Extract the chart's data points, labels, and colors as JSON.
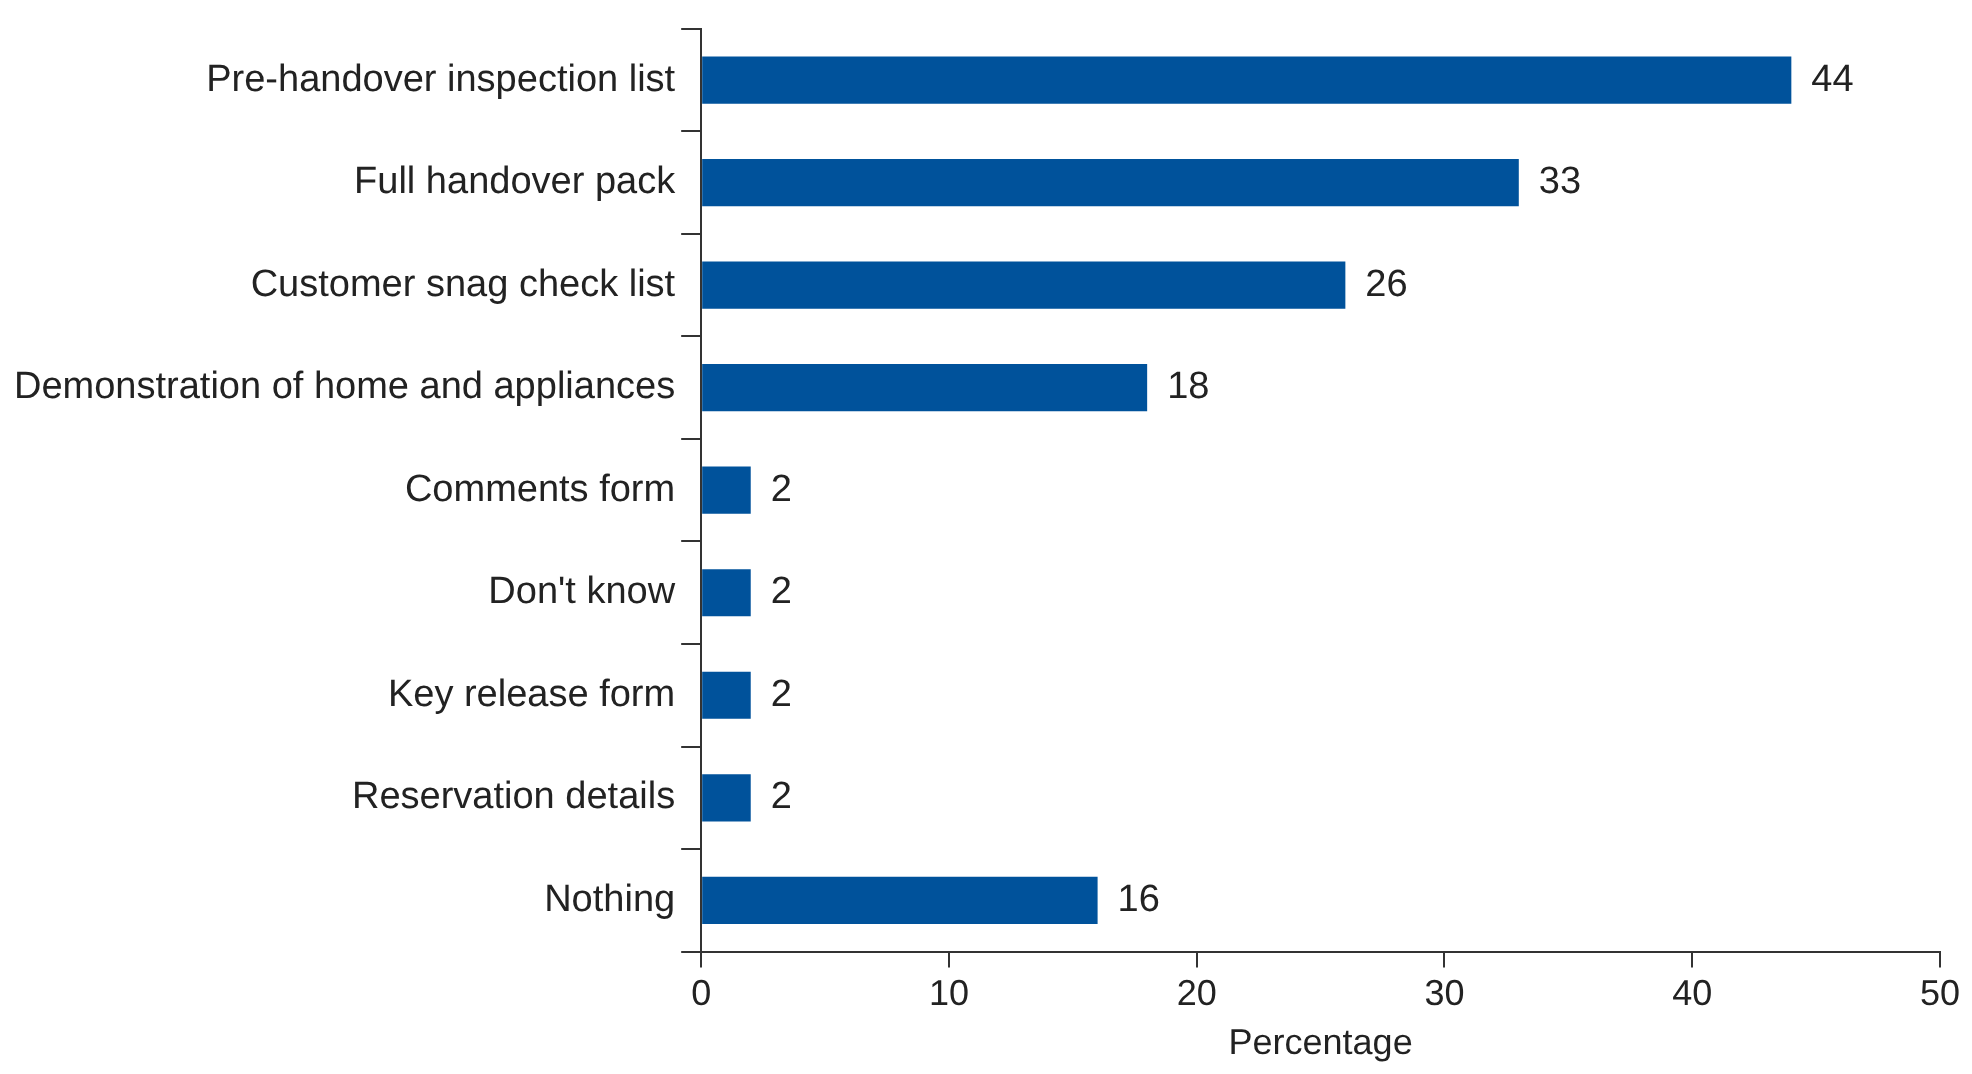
{
  "chart_data": {
    "type": "bar",
    "orientation": "horizontal",
    "xlabel": "Percentage",
    "categories": [
      "Pre-handover inspection list",
      "Full handover pack",
      "Customer snag check list",
      "Demonstration of home and appliances",
      "Comments form",
      "Don't know",
      "Key release form",
      "Reservation details",
      "Nothing"
    ],
    "values": [
      44,
      33,
      26,
      18,
      2,
      2,
      2,
      2,
      16
    ],
    "color": "#00529b",
    "xlim": [
      0,
      50
    ],
    "xticks": [
      0,
      10,
      20,
      30,
      40,
      50
    ],
    "grid": false,
    "data_labels": true,
    "legend": false
  }
}
